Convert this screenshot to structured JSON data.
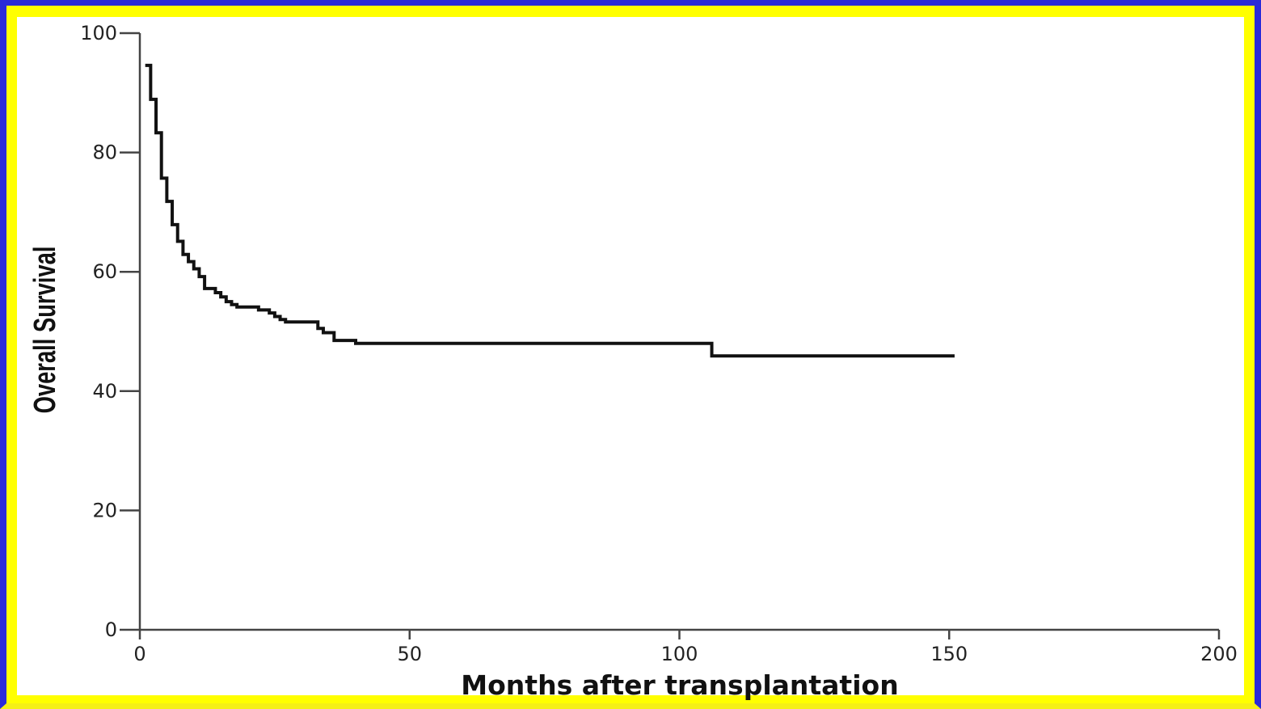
{
  "colors": {
    "frame_outer": "#2a2ad8",
    "frame_inner": "#ffff00",
    "background": "#ffffff",
    "axis": "#444444",
    "line": "#111111"
  },
  "chart_data": {
    "type": "line",
    "step": true,
    "title": "",
    "xlabel": "Months after transplantation",
    "ylabel": "Overall Survival",
    "xlim": [
      0,
      200
    ],
    "ylim": [
      0,
      100
    ],
    "xticks": [
      0,
      50,
      100,
      150,
      200
    ],
    "yticks": [
      0,
      20,
      40,
      60,
      80,
      100
    ],
    "xtick_labels": [
      "0",
      "50",
      "100",
      "150",
      "200"
    ],
    "ytick_labels": [
      "0",
      "20",
      "40",
      "60",
      "80",
      "100"
    ],
    "grid": false,
    "series": [
      {
        "x": [
          1,
          2,
          3,
          4,
          5,
          6,
          7,
          8,
          9,
          10,
          11,
          12,
          14,
          15,
          16,
          17,
          18,
          19,
          22,
          24,
          25,
          26,
          27,
          33,
          34,
          36,
          40,
          106,
          151
        ],
        "y": [
          94.6,
          88.9,
          83.3,
          75.7,
          71.8,
          67.9,
          65.1,
          62.9,
          61.7,
          60.5,
          59.2,
          57.2,
          56.5,
          55.8,
          55.0,
          54.5,
          54.1,
          54.1,
          53.6,
          53.1,
          52.5,
          52.0,
          51.6,
          50.5,
          49.8,
          48.5,
          48.0,
          45.9,
          45.9
        ]
      }
    ]
  }
}
